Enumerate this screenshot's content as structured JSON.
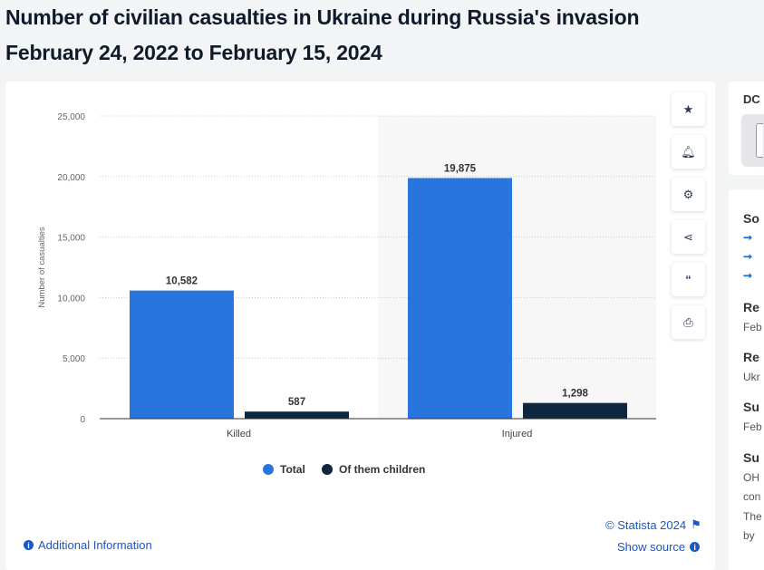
{
  "title_line1": "Number of civilian casualties in Ukraine during Russia's invasion",
  "title_line2": "February 24, 2022 to February 15, 2024",
  "chart_data": {
    "type": "bar",
    "categories": [
      "Killed",
      "Injured"
    ],
    "series": [
      {
        "name": "Total",
        "color": "#2876dd",
        "values": [
          10582,
          19875
        ],
        "labels": [
          "10,582",
          "19,875"
        ]
      },
      {
        "name": "Of them children",
        "color": "#0f2640",
        "values": [
          587,
          1298
        ],
        "labels": [
          "587",
          "1,298"
        ]
      }
    ],
    "ylabel": "Number of casualties",
    "ylim": [
      0,
      25000
    ],
    "yticks": [
      0,
      5000,
      10000,
      15000,
      20000,
      25000
    ],
    "ytick_labels": [
      "0",
      "5,000",
      "10,000",
      "15,000",
      "20,000",
      "25,000"
    ],
    "legend_position": "bottom",
    "grid": true
  },
  "tools": [
    "star-icon",
    "bell-icon",
    "gear-icon",
    "share-icon",
    "quote-icon",
    "print-icon"
  ],
  "footer": {
    "copyright": "© Statista 2024",
    "show_source": "Show source",
    "additional": "Additional Information"
  },
  "side": {
    "dl": "DC",
    "h1": "So",
    "h2": "Re",
    "v2": "Feb",
    "h3": "Re",
    "v3": "Ukr",
    "h4": "Su",
    "v4": "Feb",
    "h5": "Su",
    "v5a": "OH",
    "v5b": "con",
    "v5c": "The",
    "v5d": "by"
  }
}
